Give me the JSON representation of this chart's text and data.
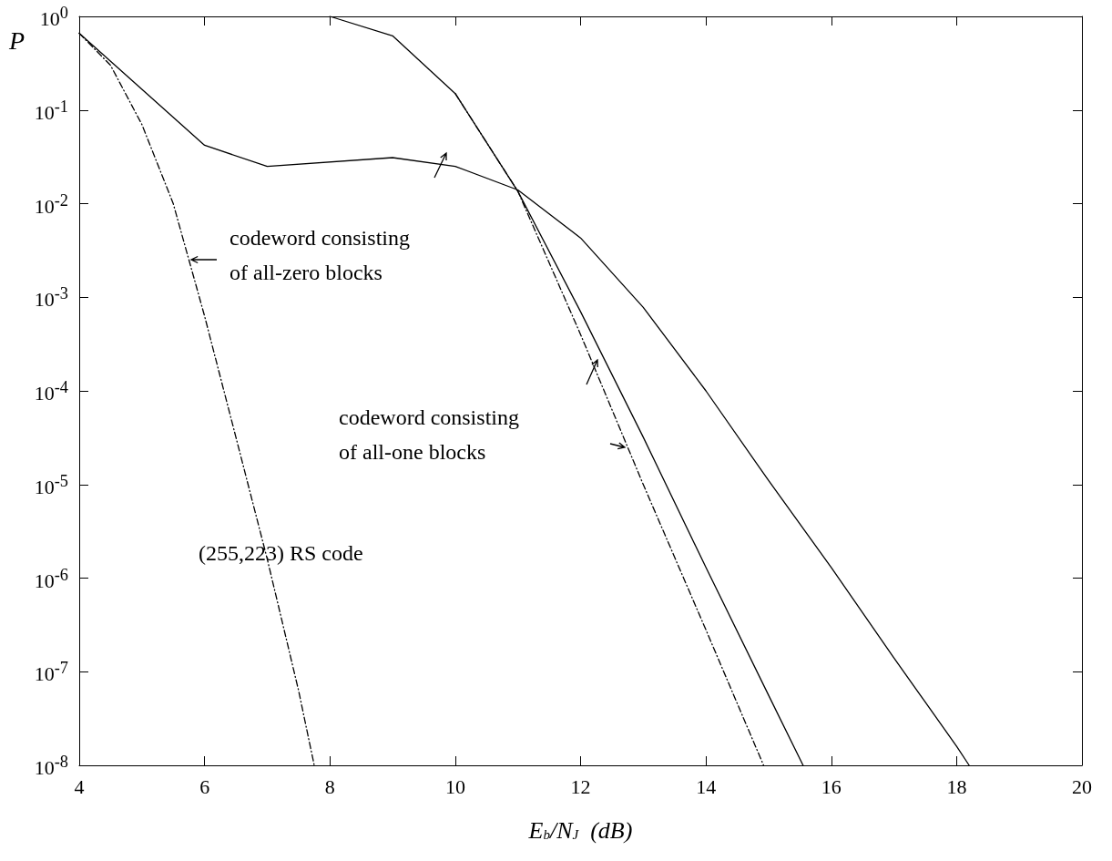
{
  "chart_data": {
    "type": "line",
    "xlabel": "E$_{b}$/N$_{J}$  (dB)",
    "ylabel": "P",
    "series": [
      {
        "color": "#000000",
        "line_style": "solid",
        "x": [
          4,
          6,
          7,
          9,
          10,
          11,
          12,
          13,
          14,
          15,
          16,
          17,
          18,
          18.2
        ],
        "values": [
          0.66,
          0.042,
          0.025,
          0.031,
          0.025,
          0.014,
          0.0043,
          0.00078,
          0.0001,
          1.1e-05,
          1.3e-06,
          1.4e-07,
          1.6e-08,
          1e-08
        ]
      },
      {
        "color": "#000000",
        "line_style": "solid",
        "x": [
          8,
          9,
          10,
          11,
          12,
          13,
          14,
          15,
          15.55
        ],
        "values": [
          1,
          0.62,
          0.15,
          0.0135,
          0.0007,
          3.2e-05,
          1.3e-06,
          5.6e-08,
          1e-08
        ]
      },
      {
        "color": "#000000",
        "line_style": "dashed",
        "x": [
          4,
          4.5,
          5,
          5.5,
          6,
          6.5,
          7,
          7.5,
          7.75
        ],
        "values": [
          0.66,
          0.3,
          0.07,
          0.01,
          0.00063,
          3.2e-05,
          1.6e-06,
          6.3e-08,
          1e-08
        ]
      },
      {
        "color": "#000000",
        "line_style": "dashed",
        "x": [
          10,
          11,
          12,
          13,
          14,
          14.92
        ],
        "values": [
          0.15,
          0.0135,
          0.0004,
          1e-05,
          2.8e-07,
          1e-08
        ]
      }
    ],
    "xlim": [
      4,
      20
    ],
    "xticks": [
      4,
      6,
      8,
      10,
      12,
      14,
      16,
      18,
      20
    ],
    "ylim": [
      1e-08,
      1
    ],
    "log": "y",
    "yticks": [
      {
        "value": 1,
        "label": "10$^{0}$"
      },
      {
        "value": 0.1,
        "label": "10$^{-1}$"
      },
      {
        "value": 0.01,
        "label": "10$^{-2}$"
      },
      {
        "value": 0.001,
        "label": "10$^{-3}$"
      },
      {
        "value": 0.0001,
        "label": "10$^{-4}$"
      },
      {
        "value": 1e-05,
        "label": "10$^{-5}$"
      },
      {
        "value": 1e-06,
        "label": "10$^{-6}$"
      },
      {
        "value": 1e-07,
        "label": "10$^{-7}$"
      },
      {
        "value": 1e-08,
        "label": "10$^{-8}$"
      }
    ],
    "grid": false,
    "marker": "none",
    "annotations": [
      "codeword consisting\nof all-zero blocks",
      "codeword consisting\nof all-one blocks",
      "(255,223) RS code"
    ]
  }
}
